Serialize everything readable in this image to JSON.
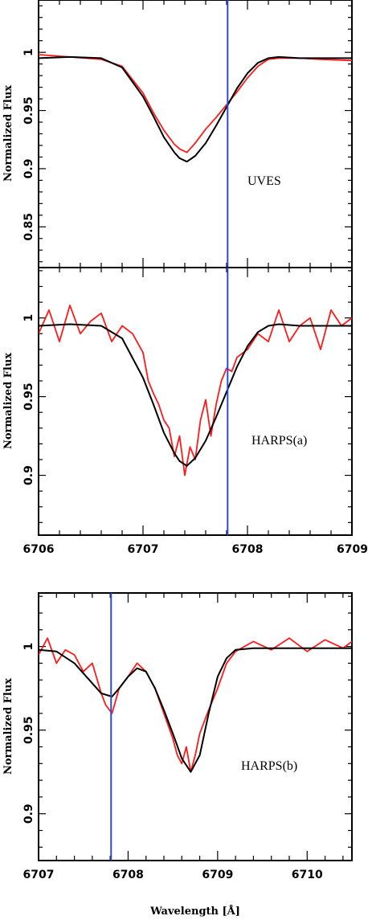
{
  "figure": {
    "ylabel": "Normalized Flux",
    "xlabel": "Wavelength [Å]"
  },
  "chart_data": [
    {
      "type": "line",
      "label": "UVES",
      "xlim": [
        6706,
        6709
      ],
      "ylim": [
        0.815,
        1.045
      ],
      "yticks": [
        0.85,
        0.9,
        0.95,
        1
      ],
      "ytick_labels": [
        "0.85",
        "0.9",
        "0.95",
        "1"
      ],
      "xticks": [
        6706,
        6707,
        6708,
        6709
      ],
      "xtick_labels": [],
      "vline": 6707.81,
      "colors": {
        "observed": "#ff1a1a",
        "model": "#000000",
        "vline": "#2b4bd6"
      },
      "series": [
        {
          "role": "observed",
          "x": [
            6706.0,
            6706.3,
            6706.6,
            6706.8,
            6707.0,
            6707.1,
            6707.2,
            6707.3,
            6707.35,
            6707.42,
            6707.5,
            6707.6,
            6707.7,
            6707.8,
            6707.9,
            6708.0,
            6708.1,
            6708.2,
            6708.3,
            6708.5,
            6708.7,
            6709.0
          ],
          "y": [
            0.998,
            0.996,
            0.994,
            0.988,
            0.965,
            0.948,
            0.933,
            0.921,
            0.917,
            0.914,
            0.922,
            0.934,
            0.944,
            0.955,
            0.966,
            0.978,
            0.988,
            0.994,
            0.995,
            0.995,
            0.994,
            0.993
          ]
        },
        {
          "role": "model",
          "x": [
            6706.0,
            6706.3,
            6706.6,
            6706.8,
            6707.0,
            6707.1,
            6707.2,
            6707.3,
            6707.35,
            6707.42,
            6707.5,
            6707.6,
            6707.7,
            6707.8,
            6707.9,
            6708.0,
            6708.1,
            6708.2,
            6708.3,
            6708.5,
            6708.7,
            6709.0
          ],
          "y": [
            0.995,
            0.996,
            0.995,
            0.987,
            0.962,
            0.945,
            0.927,
            0.914,
            0.909,
            0.906,
            0.911,
            0.922,
            0.937,
            0.953,
            0.969,
            0.982,
            0.991,
            0.995,
            0.996,
            0.995,
            0.995,
            0.995
          ]
        }
      ]
    },
    {
      "type": "line",
      "label": "HARPS(a)",
      "xlim": [
        6706,
        6709
      ],
      "ylim": [
        0.862,
        1.032
      ],
      "yticks": [
        0.9,
        0.95,
        1
      ],
      "ytick_labels": [
        "0.9",
        "0.95",
        "1"
      ],
      "xticks": [
        6706,
        6707,
        6708,
        6709
      ],
      "xtick_labels": [
        "6706",
        "6707",
        "6708",
        "6709"
      ],
      "vline": 6707.81,
      "colors": {
        "observed": "#ff1a1a",
        "model": "#000000",
        "vline": "#2b4bd6"
      },
      "series": [
        {
          "role": "observed",
          "x": [
            6706.0,
            6706.1,
            6706.2,
            6706.3,
            6706.4,
            6706.5,
            6706.6,
            6706.7,
            6706.8,
            6706.9,
            6707.0,
            6707.05,
            6707.1,
            6707.15,
            6707.2,
            6707.25,
            6707.3,
            6707.35,
            6707.4,
            6707.45,
            6707.5,
            6707.55,
            6707.6,
            6707.65,
            6707.7,
            6707.75,
            6707.8,
            6707.85,
            6707.9,
            6708.0,
            6708.1,
            6708.2,
            6708.3,
            6708.4,
            6708.5,
            6708.6,
            6708.7,
            6708.8,
            6708.9,
            6709.0
          ],
          "y": [
            0.99,
            1.005,
            0.985,
            1.008,
            0.99,
            0.998,
            1.003,
            0.985,
            0.995,
            0.99,
            0.978,
            0.96,
            0.952,
            0.945,
            0.935,
            0.93,
            0.912,
            0.925,
            0.9,
            0.918,
            0.91,
            0.935,
            0.948,
            0.925,
            0.945,
            0.96,
            0.968,
            0.966,
            0.975,
            0.98,
            0.99,
            0.985,
            1.005,
            0.985,
            0.995,
            1.0,
            0.98,
            1.005,
            0.995,
            1.0
          ]
        },
        {
          "role": "model",
          "x": [
            6706.0,
            6706.3,
            6706.6,
            6706.8,
            6707.0,
            6707.1,
            6707.2,
            6707.3,
            6707.35,
            6707.42,
            6707.5,
            6707.6,
            6707.7,
            6707.8,
            6707.9,
            6708.0,
            6708.1,
            6708.2,
            6708.3,
            6708.5,
            6708.7,
            6709.0
          ],
          "y": [
            0.995,
            0.996,
            0.995,
            0.987,
            0.962,
            0.945,
            0.927,
            0.914,
            0.909,
            0.906,
            0.911,
            0.922,
            0.937,
            0.953,
            0.969,
            0.982,
            0.991,
            0.995,
            0.996,
            0.995,
            0.995,
            0.995
          ]
        }
      ]
    },
    {
      "type": "line",
      "label": "HARPS(b)",
      "xlim": [
        6707,
        6710.5
      ],
      "ylim": [
        0.872,
        1.032
      ],
      "yticks": [
        0.9,
        0.95,
        1
      ],
      "ytick_labels": [
        "0.9",
        "0.95",
        "1"
      ],
      "xticks": [
        6707,
        6708,
        6709,
        6710
      ],
      "xtick_labels": [
        "6707",
        "6708",
        "6709",
        "6710"
      ],
      "vline": 6707.81,
      "colors": {
        "observed": "#ff1a1a",
        "model": "#000000",
        "vline": "#2b4bd6"
      },
      "series": [
        {
          "role": "observed",
          "x": [
            6707.0,
            6707.1,
            6707.2,
            6707.3,
            6707.4,
            6707.5,
            6707.6,
            6707.7,
            6707.75,
            6707.82,
            6707.9,
            6708.0,
            6708.1,
            6708.2,
            6708.3,
            6708.4,
            6708.5,
            6708.55,
            6708.6,
            6708.65,
            6708.7,
            6708.75,
            6708.8,
            6708.9,
            6709.0,
            6709.1,
            6709.2,
            6709.4,
            6709.6,
            6709.8,
            6710.0,
            6710.2,
            6710.4,
            6710.5
          ],
          "y": [
            0.995,
            1.005,
            0.99,
            0.998,
            0.995,
            0.985,
            0.99,
            0.972,
            0.965,
            0.96,
            0.975,
            0.982,
            0.99,
            0.985,
            0.975,
            0.96,
            0.945,
            0.935,
            0.93,
            0.94,
            0.925,
            0.935,
            0.948,
            0.962,
            0.975,
            0.99,
            0.997,
            1.003,
            0.998,
            1.005,
            0.997,
            1.004,
            0.999,
            1.003
          ]
        },
        {
          "role": "model",
          "x": [
            6707.0,
            6707.2,
            6707.4,
            6707.6,
            6707.7,
            6707.82,
            6707.9,
            6708.0,
            6708.1,
            6708.2,
            6708.3,
            6708.4,
            6708.5,
            6708.6,
            6708.7,
            6708.8,
            6708.9,
            6709.0,
            6709.1,
            6709.2,
            6709.4,
            6709.6,
            6710.0,
            6710.5
          ],
          "y": [
            0.998,
            0.997,
            0.99,
            0.978,
            0.972,
            0.97,
            0.975,
            0.982,
            0.987,
            0.985,
            0.975,
            0.962,
            0.948,
            0.933,
            0.925,
            0.935,
            0.96,
            0.982,
            0.993,
            0.998,
            0.999,
            0.999,
            0.999,
            0.999
          ]
        }
      ]
    }
  ]
}
